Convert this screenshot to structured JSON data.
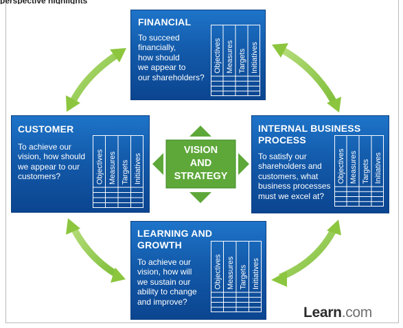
{
  "header_cut": "perspective highlights",
  "perspectives": {
    "financial": {
      "title": "FINANCIAL",
      "question": [
        "To succeed",
        "financially,",
        "how should",
        "we appear to",
        "our shareholders?"
      ]
    },
    "customer": {
      "title": "CUSTOMER",
      "question": [
        "To achieve our",
        "vision, how should",
        "we appear to our",
        "customers?"
      ]
    },
    "internal": {
      "title": [
        "INTERNAL BUSINESS",
        "PROCESS"
      ],
      "question": [
        "To satisfy our",
        "shareholders and",
        "customers, what",
        "business processes",
        "must we excel at?"
      ]
    },
    "learning": {
      "title": [
        "LEARNING AND",
        "GROWTH"
      ],
      "question": [
        "To achieve our",
        "vision, how will",
        "we sustain our",
        "ability to change",
        "and improve?"
      ]
    }
  },
  "table_columns": [
    "Objectives",
    "Measures",
    "Targets",
    "Initiatives"
  ],
  "center": {
    "lines": [
      "VISION",
      "AND",
      "STRATEGY"
    ]
  },
  "logo": {
    "main": "Learn",
    "suffix": ".com"
  },
  "colors": {
    "box_blue": "#135aaa",
    "center_green": "#5ea83a",
    "arrow_green": "#8cc63f"
  }
}
